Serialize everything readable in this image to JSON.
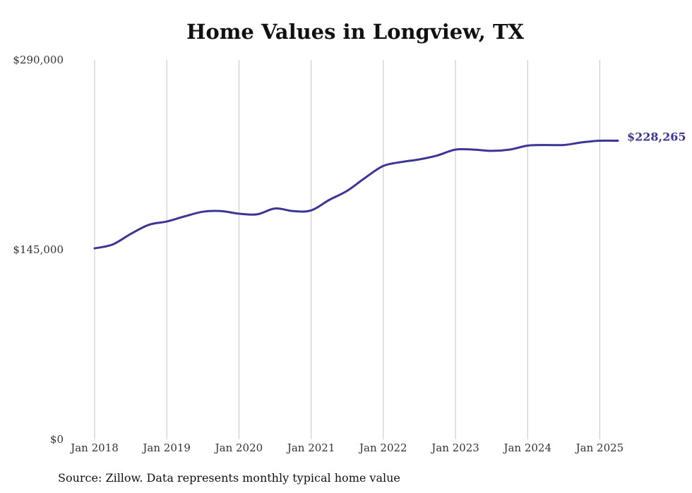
{
  "chart_data": {
    "type": "line",
    "title": "Home Values in Longview, TX",
    "source": "Source: Zillow. Data represents monthly typical home value",
    "ylim": [
      0,
      290000
    ],
    "y_ticks": [
      {
        "value": 0,
        "label": "$0"
      },
      {
        "value": 145000,
        "label": "$145,000"
      },
      {
        "value": 290000,
        "label": "$290,000"
      }
    ],
    "x_ticks": [
      {
        "value": 2018.0,
        "label": "Jan 2018"
      },
      {
        "value": 2019.0,
        "label": "Jan 2019"
      },
      {
        "value": 2020.0,
        "label": "Jan 2020"
      },
      {
        "value": 2021.0,
        "label": "Jan 2021"
      },
      {
        "value": 2022.0,
        "label": "Jan 2022"
      },
      {
        "value": 2023.0,
        "label": "Jan 2023"
      },
      {
        "value": 2024.0,
        "label": "Jan 2024"
      },
      {
        "value": 2025.0,
        "label": "Jan 2025"
      }
    ],
    "xlim": [
      2018.0,
      2025.25
    ],
    "grid": "vertical",
    "line_color": "#3b3596",
    "end_label": "$228,265",
    "series": [
      {
        "x": [
          2018.0,
          2018.25,
          2018.5,
          2018.75,
          2019.0,
          2019.25,
          2019.5,
          2019.75,
          2020.0,
          2020.25,
          2020.5,
          2020.75,
          2021.0,
          2021.25,
          2021.5,
          2021.75,
          2022.0,
          2022.25,
          2022.5,
          2022.75,
          2023.0,
          2023.25,
          2023.5,
          2023.75,
          2024.0,
          2024.25,
          2024.5,
          2024.75,
          2025.0,
          2025.25
        ],
        "values": [
          146000,
          149000,
          157000,
          164000,
          166500,
          170500,
          174000,
          174500,
          172500,
          172000,
          176500,
          174500,
          175000,
          183000,
          190000,
          200000,
          209000,
          212000,
          214000,
          217000,
          221500,
          221500,
          220500,
          221500,
          224500,
          225000,
          225000,
          227000,
          228265,
          228265
        ]
      }
    ]
  }
}
